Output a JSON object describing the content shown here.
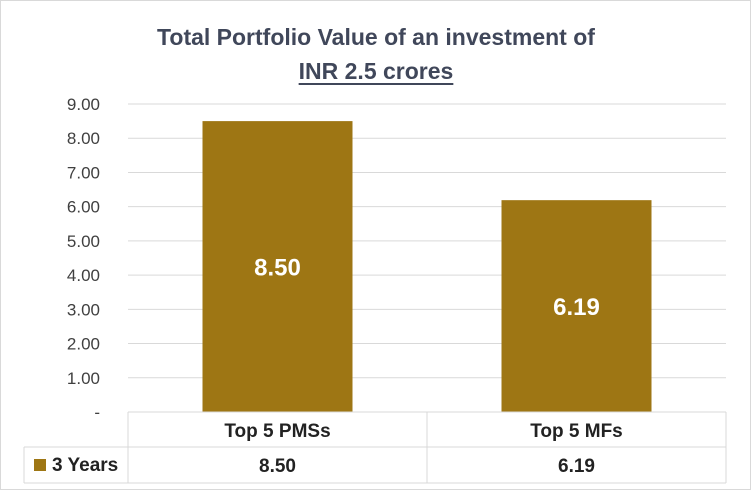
{
  "chart_data": {
    "type": "bar",
    "title_line1": "Total Portfolio Value of an investment of",
    "title_line2": "INR 2.5 crores",
    "categories": [
      "Top 5 PMSs",
      "Top 5 MFs"
    ],
    "series": [
      {
        "name": "3 Years",
        "values": [
          8.5,
          6.19
        ],
        "labels": [
          "8.50",
          "6.19"
        ],
        "color": "#9e7614"
      }
    ],
    "y_ticks": [
      "-",
      "1.00",
      "2.00",
      "3.00",
      "4.00",
      "5.00",
      "6.00",
      "7.00",
      "8.00",
      "9.00"
    ],
    "ylim": [
      0,
      9
    ],
    "grid": true,
    "data_table": true
  }
}
